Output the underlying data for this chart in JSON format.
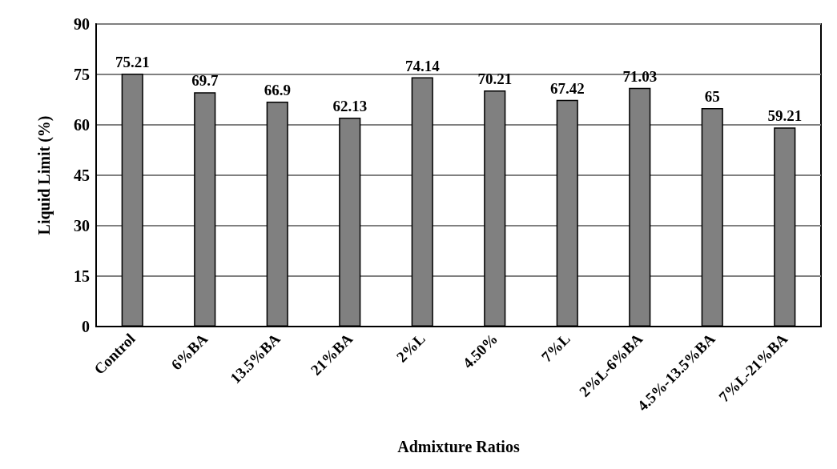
{
  "chart_data": {
    "type": "bar",
    "xlabel": "Admixture Ratios",
    "ylabel": "Liquid Limit (%)",
    "categories": [
      "Control",
      "6%BA",
      "13.5%BA",
      "21%BA",
      "2%L",
      "4.50%",
      "7%L",
      "2%L-6%BA",
      "4.5%-13.5%BA",
      "7%L-21%BA"
    ],
    "values": [
      75.21,
      69.7,
      66.9,
      62.13,
      74.14,
      70.21,
      67.42,
      71.03,
      65,
      59.21
    ],
    "color": "#808080",
    "ylim": [
      0,
      90
    ],
    "yticks": [
      0,
      15,
      30,
      45,
      60,
      75,
      90
    ],
    "grid": "y",
    "data_labels": true
  }
}
